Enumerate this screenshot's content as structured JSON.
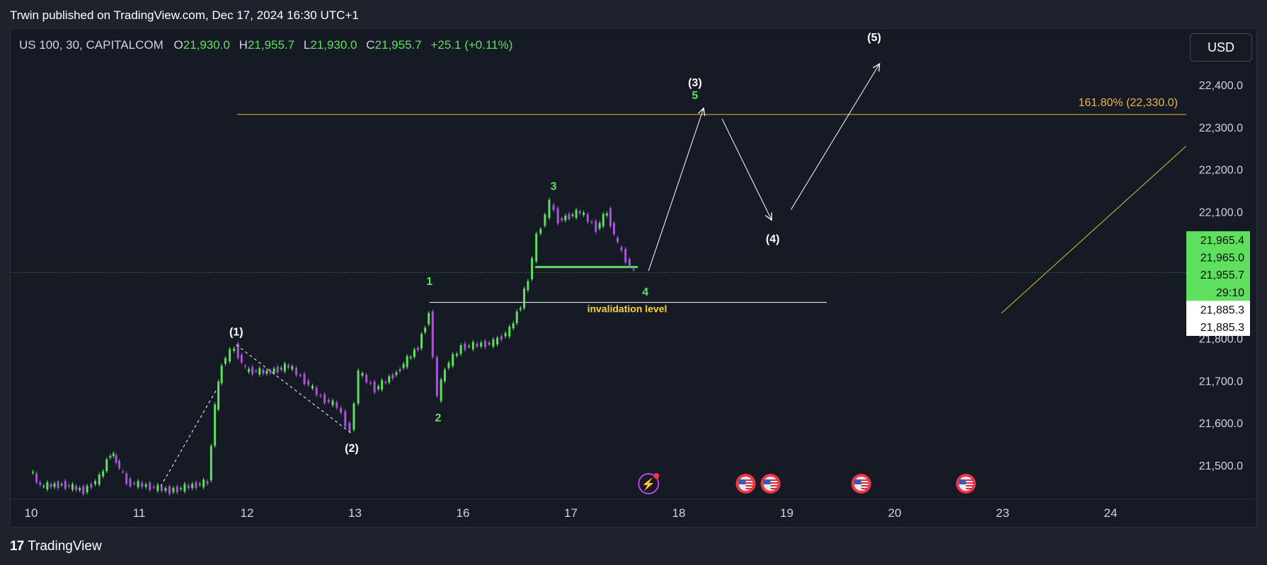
{
  "header": {
    "publisher": "Trwin published on TradingView.com, Dec 17, 2024 16:30 UTC+1"
  },
  "legend": {
    "symbol": "US 100, 30, CAPITALCOM",
    "open_label": "O",
    "open": "21,930.0",
    "high_label": "H",
    "high": "21,955.7",
    "low_label": "L",
    "low": "21,930.0",
    "close_label": "C",
    "close": "21,955.7",
    "change": "+25.1 (+0.11%)"
  },
  "currency_button": "USD",
  "footer": {
    "logo_text": "TradingView"
  },
  "colors": {
    "background": "#161a25",
    "up": "#5ee05e",
    "down": "#a855d8",
    "fib": "#f0b54a",
    "trendline": "#d9c036",
    "wave_label_green": "#5ee05e"
  },
  "chart_data": {
    "type": "candlestick",
    "symbol": "US 100",
    "interval": "30",
    "ylim": [
      21430,
      22480
    ],
    "y_ticks": [
      "22,400.0",
      "22,300.0",
      "22,200.0",
      "22,100.0",
      "21,800.0",
      "21,700.0",
      "21,600.0",
      "21,500.0"
    ],
    "y_tick_values": [
      22400,
      22300,
      22200,
      22100,
      21800,
      21700,
      21600,
      21500
    ],
    "x_ticks": [
      "10",
      "11",
      "12",
      "13",
      "16",
      "17",
      "18",
      "19",
      "20",
      "23",
      "24"
    ],
    "price_tags": [
      {
        "label": "21,965.4",
        "value": 21965.4,
        "style": "green"
      },
      {
        "label": "21,965.0",
        "value": 21965.0,
        "style": "green"
      },
      {
        "label": "21,955.7",
        "value": 21955.7,
        "style": "green"
      },
      {
        "label": "29:10",
        "value": 21920,
        "style": "green"
      },
      {
        "label": "21,885.3",
        "value": 21885.3,
        "style": "white"
      },
      {
        "label": "21,885.3",
        "value": 21850,
        "style": "white"
      }
    ],
    "current_price": 21955.7,
    "fib_level": {
      "label": "161.80% (22,330.0)",
      "value": 22330.0
    },
    "invalidation": {
      "label": "invalidation level",
      "value": 21885.3
    },
    "price_path": [
      {
        "x": 0.0,
        "y": 21490
      },
      {
        "x": 0.1,
        "y": 21450
      },
      {
        "x": 0.3,
        "y": 21455
      },
      {
        "x": 0.5,
        "y": 21440
      },
      {
        "x": 0.65,
        "y": 21470
      },
      {
        "x": 0.75,
        "y": 21530
      },
      {
        "x": 0.8,
        "y": 21510
      },
      {
        "x": 0.9,
        "y": 21460
      },
      {
        "x": 1.3,
        "y": 21440
      },
      {
        "x": 1.65,
        "y": 21460
      },
      {
        "x": 1.72,
        "y": 21640
      },
      {
        "x": 1.78,
        "y": 21740
      },
      {
        "x": 1.9,
        "y": 21780
      },
      {
        "x": 2.0,
        "y": 21725
      },
      {
        "x": 2.2,
        "y": 21720
      },
      {
        "x": 2.4,
        "y": 21735
      },
      {
        "x": 2.55,
        "y": 21700
      },
      {
        "x": 2.7,
        "y": 21660
      },
      {
        "x": 2.85,
        "y": 21640
      },
      {
        "x": 2.97,
        "y": 21580
      },
      {
        "x": 3.05,
        "y": 21720
      },
      {
        "x": 3.2,
        "y": 21680
      },
      {
        "x": 3.4,
        "y": 21720
      },
      {
        "x": 3.6,
        "y": 21780
      },
      {
        "x": 3.7,
        "y": 21860
      },
      {
        "x": 3.78,
        "y": 21660
      },
      {
        "x": 3.85,
        "y": 21730
      },
      {
        "x": 4.0,
        "y": 21780
      },
      {
        "x": 4.3,
        "y": 21790
      },
      {
        "x": 4.45,
        "y": 21820
      },
      {
        "x": 4.55,
        "y": 21880
      },
      {
        "x": 4.62,
        "y": 21940
      },
      {
        "x": 4.7,
        "y": 22040
      },
      {
        "x": 4.82,
        "y": 22120
      },
      {
        "x": 4.9,
        "y": 22080
      },
      {
        "x": 5.1,
        "y": 22100
      },
      {
        "x": 5.25,
        "y": 22060
      },
      {
        "x": 5.35,
        "y": 22100
      },
      {
        "x": 5.45,
        "y": 22020
      },
      {
        "x": 5.6,
        "y": 21955.7
      }
    ],
    "wave_labels": [
      {
        "text": "(1)",
        "x": 1.9,
        "y": 21815,
        "color": "white"
      },
      {
        "text": "(2)",
        "x": 2.97,
        "y": 21540,
        "color": "white"
      },
      {
        "text": "1",
        "x": 3.69,
        "y": 21935,
        "color": "green"
      },
      {
        "text": "2",
        "x": 3.77,
        "y": 21612,
        "color": "green"
      },
      {
        "text": "3",
        "x": 4.84,
        "y": 22160,
        "color": "green"
      },
      {
        "text": "4",
        "x": 5.69,
        "y": 21910,
        "color": "green"
      },
      {
        "text": "(3)",
        "x": 6.15,
        "y": 22405,
        "color": "white"
      },
      {
        "text": "5",
        "x": 6.15,
        "y": 22375,
        "color": "green"
      },
      {
        "text": "(4)",
        "x": 6.87,
        "y": 22035,
        "color": "white"
      },
      {
        "text": "(5)",
        "x": 7.81,
        "y": 22512,
        "color": "white"
      }
    ],
    "projection_path": [
      {
        "x": 5.72,
        "y": 21960
      },
      {
        "x": 6.23,
        "y": 22345
      },
      {
        "x": 6.4,
        "y": 22320
      },
      {
        "x": 6.86,
        "y": 22080
      },
      {
        "x": 7.04,
        "y": 22105
      },
      {
        "x": 7.86,
        "y": 22450
      }
    ],
    "dashed_wave_lines": [
      [
        {
          "x": 1.2,
          "y": 21450
        },
        {
          "x": 1.72,
          "y": 21680
        }
      ],
      [
        {
          "x": 1.9,
          "y": 21785
        },
        {
          "x": 2.97,
          "y": 21575
        }
      ]
    ],
    "trendline": [
      {
        "x": 8.99,
        "y": 21860
      },
      {
        "x": 10.7,
        "y": 22255
      }
    ],
    "event_icons": [
      {
        "type": "lightning",
        "x": 5.72
      },
      {
        "type": "us-flag",
        "x": 6.62
      },
      {
        "type": "us-flag",
        "x": 6.85
      },
      {
        "type": "us-flag",
        "x": 7.69
      },
      {
        "type": "us-flag",
        "x": 8.66
      }
    ]
  }
}
